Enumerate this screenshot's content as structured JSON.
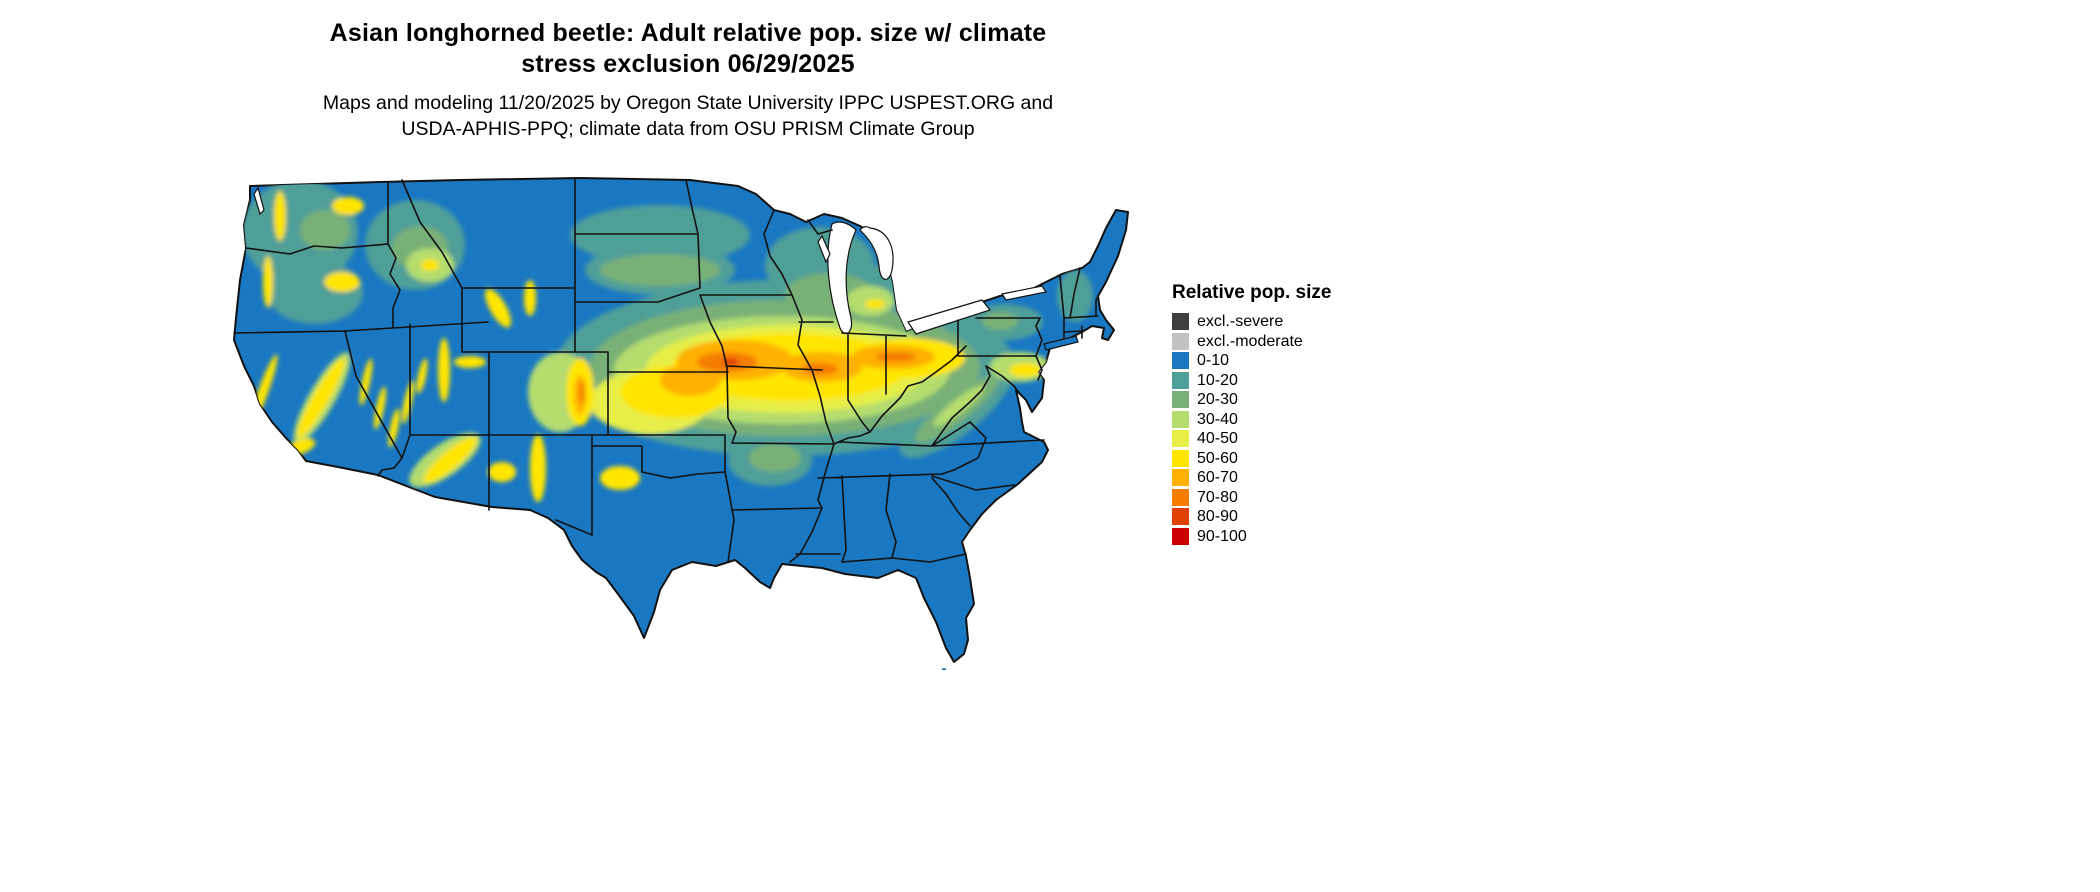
{
  "title": {
    "line1": "Asian longhorned beetle: Adult relative pop. size w/ climate",
    "line2": "stress exclusion 06/29/2025"
  },
  "subtitle": {
    "line1": "Maps and modeling 11/20/2025 by Oregon State University IPPC USPEST.ORG and",
    "line2": "USDA-APHIS-PPQ; climate data from OSU PRISM Climate Group"
  },
  "legend": {
    "title": "Relative pop. size",
    "items": [
      {
        "label": "excl.-severe",
        "color": "#3f3f3f"
      },
      {
        "label": "excl.-moderate",
        "color": "#c2c2c2"
      },
      {
        "label": "0-10",
        "color": "#1a78c2"
      },
      {
        "label": "10-20",
        "color": "#4f9f99"
      },
      {
        "label": "20-30",
        "color": "#79b077"
      },
      {
        "label": "30-40",
        "color": "#b4dd6e"
      },
      {
        "label": "40-50",
        "color": "#e6ee47"
      },
      {
        "label": "50-60",
        "color": "#ffe500"
      },
      {
        "label": "60-70",
        "color": "#ffb000"
      },
      {
        "label": "70-80",
        "color": "#f57d00"
      },
      {
        "label": "80-90",
        "color": "#e04000"
      },
      {
        "label": "90-100",
        "color": "#cc0000"
      }
    ]
  },
  "map": {
    "region": "Continental United States",
    "border_color": "#111111",
    "background": "#ffffff"
  }
}
